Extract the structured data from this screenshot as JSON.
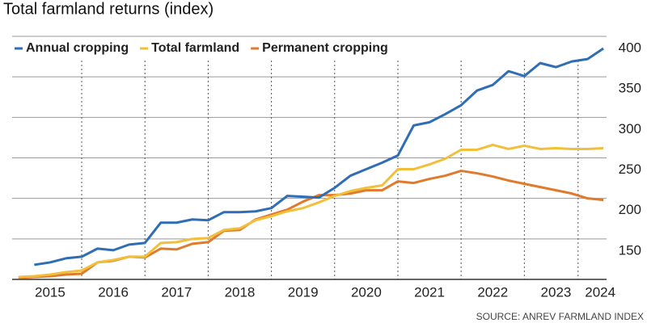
{
  "chart_data": {
    "type": "line",
    "title": "Total farmland returns (index)",
    "source": "SOURCE: ANREV FARMLAND INDEX",
    "x": [
      2015.0,
      2015.25,
      2015.5,
      2015.75,
      2016.0,
      2016.25,
      2016.5,
      2016.75,
      2017.0,
      2017.25,
      2017.5,
      2017.75,
      2018.0,
      2018.25,
      2018.5,
      2018.75,
      2019.0,
      2019.25,
      2019.5,
      2019.75,
      2020.0,
      2020.25,
      2020.5,
      2020.75,
      2021.0,
      2021.25,
      2021.5,
      2021.75,
      2022.0,
      2022.25,
      2022.5,
      2022.75,
      2023.0,
      2023.25,
      2023.5,
      2023.75,
      2024.0,
      2024.25
    ],
    "series": [
      {
        "name": "Annual cropping",
        "color": "#2f6db5",
        "values": [
          null,
          118,
          121,
          126,
          128,
          138,
          136,
          143,
          145,
          170,
          170,
          174,
          173,
          183,
          183,
          184,
          188,
          203,
          202,
          201,
          213,
          228,
          236,
          244,
          253,
          290,
          294,
          304,
          315,
          333,
          340,
          357,
          351,
          367,
          362,
          369,
          372,
          385
        ]
      },
      {
        "name": "Total farmland",
        "color": "#f2bf3a",
        "values": [
          103,
          104,
          106,
          109,
          111,
          121,
          124,
          128,
          128,
          145,
          146,
          150,
          151,
          161,
          163,
          173,
          178,
          184,
          188,
          195,
          203,
          209,
          213,
          216,
          236,
          236,
          242,
          249,
          260,
          260,
          266,
          261,
          265,
          261,
          262,
          261,
          261,
          262
        ]
      },
      {
        "name": "Permanent cropping",
        "color": "#e07a2c",
        "values": [
          102,
          103,
          104,
          106,
          107,
          121,
          123,
          128,
          127,
          138,
          137,
          144,
          146,
          160,
          161,
          174,
          180,
          186,
          196,
          204,
          204,
          206,
          210,
          210,
          221,
          219,
          224,
          228,
          234,
          231,
          227,
          222,
          218,
          214,
          210,
          206,
          200,
          198
        ]
      }
    ],
    "xlim": [
      2014.9,
      2024.3
    ],
    "xticks": [
      {
        "value": 2015.5,
        "label": "2015"
      },
      {
        "value": 2016.5,
        "label": "2016"
      },
      {
        "value": 2017.5,
        "label": "2017"
      },
      {
        "value": 2018.5,
        "label": "2018"
      },
      {
        "value": 2019.5,
        "label": "2019"
      },
      {
        "value": 2020.5,
        "label": "2020"
      },
      {
        "value": 2021.5,
        "label": "2021"
      },
      {
        "value": 2022.5,
        "label": "2022"
      },
      {
        "value": 2023.5,
        "label": "2023"
      },
      {
        "value": 2024.2,
        "label": "2024"
      }
    ],
    "ylim": [
      100,
      400
    ],
    "yticks": [
      150,
      200,
      250,
      300,
      350,
      400
    ],
    "grid": true
  }
}
